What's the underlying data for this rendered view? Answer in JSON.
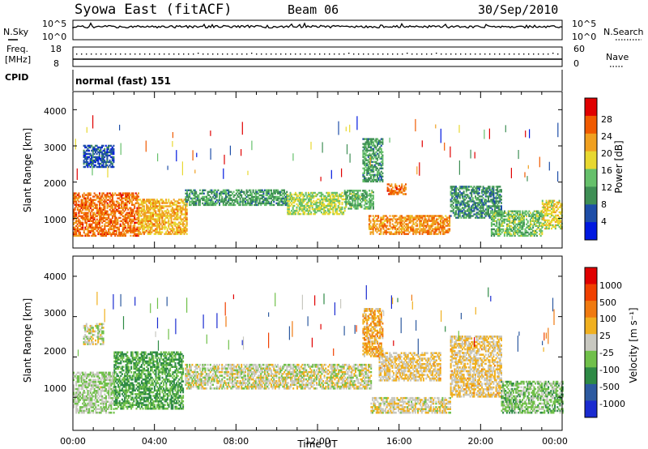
{
  "header": {
    "station": "Syowa East (fitACF)",
    "beam": "Beam 06",
    "date": "30/Sep/2010"
  },
  "noise_panel": {
    "left_label": "N.Sky",
    "right_label": "N.Search",
    "left_ticks": [
      "10^5",
      "10^0"
    ],
    "right_ticks": [
      "10^5",
      "10^0"
    ]
  },
  "freq_panel": {
    "left_label_1": "Freq.",
    "left_label_2": "[MHz]",
    "left_ticks": [
      "18",
      "8"
    ],
    "right_label": "Nave",
    "right_ticks": [
      "60",
      "0"
    ]
  },
  "cpid_panel": {
    "label": "CPID",
    "program": "normal (fast) 151"
  },
  "power_panel": {
    "ylabel": "Slant Range [km]",
    "yticks": [
      "4000",
      "3000",
      "2000",
      "1000"
    ],
    "colorbar_label": "Power [dB]",
    "colorbar_ticks": [
      "28",
      "24",
      "20",
      "16",
      "12",
      "8",
      "4"
    ],
    "colors": [
      "#0018e0",
      "#1e4ea8",
      "#3f8f55",
      "#66c06b",
      "#e8d830",
      "#f0a020",
      "#f05a00",
      "#e00000"
    ]
  },
  "velocity_panel": {
    "ylabel": "Slant Range [km]",
    "yticks": [
      "4000",
      "3000",
      "2000",
      "1000"
    ],
    "colorbar_label": "Velocity [m s⁻¹]",
    "colorbar_ticks": [
      "1000",
      "500",
      "100",
      "25",
      "-25",
      "-100",
      "-500",
      "-1000"
    ],
    "colors": [
      "#1a2bd0",
      "#2d5aa0",
      "#2e8a45",
      "#70c04a",
      "#c8c8c0",
      "#f0b020",
      "#f07a10",
      "#f04000",
      "#e00000"
    ]
  },
  "xaxis": {
    "label": "Time UT",
    "ticks": [
      "00:00",
      "04:00",
      "08:00",
      "12:00",
      "16:00",
      "20:00",
      "00:00"
    ]
  },
  "chart_data": {
    "type": "heatmap",
    "x_unit": "hours UT",
    "y_unit": "km",
    "xlim": [
      0,
      24
    ],
    "ylim": [
      180,
      4500
    ],
    "power_clim": [
      0,
      32
    ],
    "velocity_clim": [
      -1200,
      1200
    ],
    "power_features": [
      {
        "x": [
          0.0,
          3.2
        ],
        "y": [
          500,
          1700
        ],
        "mean": 25
      },
      {
        "x": [
          3.2,
          5.6
        ],
        "y": [
          550,
          1500
        ],
        "mean": 21
      },
      {
        "x": [
          5.5,
          10.5
        ],
        "y": [
          1350,
          1800
        ],
        "mean": 11
      },
      {
        "x": [
          10.5,
          13.3
        ],
        "y": [
          1100,
          1700
        ],
        "mean": 16
      },
      {
        "x": [
          13.3,
          14.7
        ],
        "y": [
          1250,
          1750
        ],
        "mean": 13
      },
      {
        "x": [
          14.5,
          18.5
        ],
        "y": [
          550,
          1050
        ],
        "mean": 23
      },
      {
        "x": [
          15.4,
          16.3
        ],
        "y": [
          1650,
          1950
        ],
        "mean": 25
      },
      {
        "x": [
          14.2,
          15.2
        ],
        "y": [
          2000,
          3200
        ],
        "mean": 11
      },
      {
        "x": [
          18.5,
          21.0
        ],
        "y": [
          1000,
          1900
        ],
        "mean": 10
      },
      {
        "x": [
          20.5,
          23.0
        ],
        "y": [
          500,
          1200
        ],
        "mean": 14
      },
      {
        "x": [
          23.0,
          24.0
        ],
        "y": [
          700,
          1500
        ],
        "mean": 18
      },
      {
        "x": [
          0.5,
          2.0
        ],
        "y": [
          2400,
          3000
        ],
        "mean": 6
      }
    ],
    "velocity_features": [
      {
        "x": [
          0.0,
          2.0
        ],
        "y": [
          600,
          1600
        ],
        "mean": -130
      },
      {
        "x": [
          2.0,
          5.4
        ],
        "y": [
          700,
          2100
        ],
        "mean": -400
      },
      {
        "x": [
          0.5,
          1.5
        ],
        "y": [
          2300,
          2800
        ],
        "mean": 0
      },
      {
        "x": [
          5.5,
          14.6
        ],
        "y": [
          1200,
          1800
        ],
        "mean": 0
      },
      {
        "x": [
          14.6,
          18.5
        ],
        "y": [
          600,
          1000
        ],
        "mean": 70
      },
      {
        "x": [
          15.0,
          18.0
        ],
        "y": [
          1400,
          2100
        ],
        "mean": 150
      },
      {
        "x": [
          14.2,
          15.2
        ],
        "y": [
          2000,
          3200
        ],
        "mean": 300
      },
      {
        "x": [
          18.5,
          21.0
        ],
        "y": [
          1000,
          2500
        ],
        "mean": 150
      },
      {
        "x": [
          21.0,
          24.0
        ],
        "y": [
          600,
          1400
        ],
        "mean": -250
      }
    ]
  }
}
